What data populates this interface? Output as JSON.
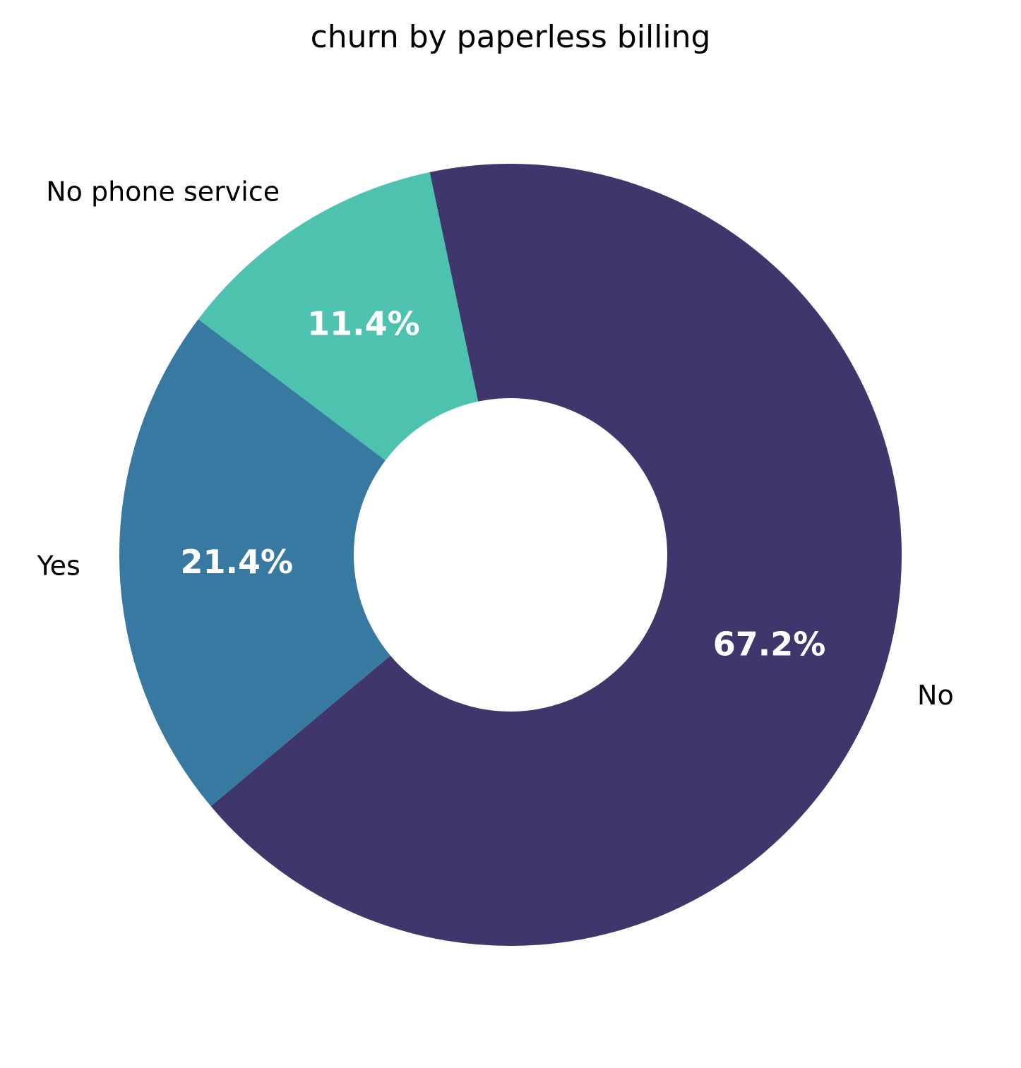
{
  "chart_data": {
    "type": "pie",
    "title": "churn by paperless billing",
    "donut": true,
    "slices": [
      {
        "label": "No",
        "value": 67.2,
        "pct_label": "67.2%",
        "color": "#3f366b"
      },
      {
        "label": "No phone service",
        "value": 11.4,
        "pct_label": "11.4%",
        "color": "#4dc2ae"
      },
      {
        "label": "Yes",
        "value": 21.4,
        "pct_label": "21.4%",
        "color": "#3879a1"
      }
    ],
    "colors": {
      "background": "#ffffff",
      "label_text": "#000000",
      "pct_text": "#ffffff"
    }
  }
}
